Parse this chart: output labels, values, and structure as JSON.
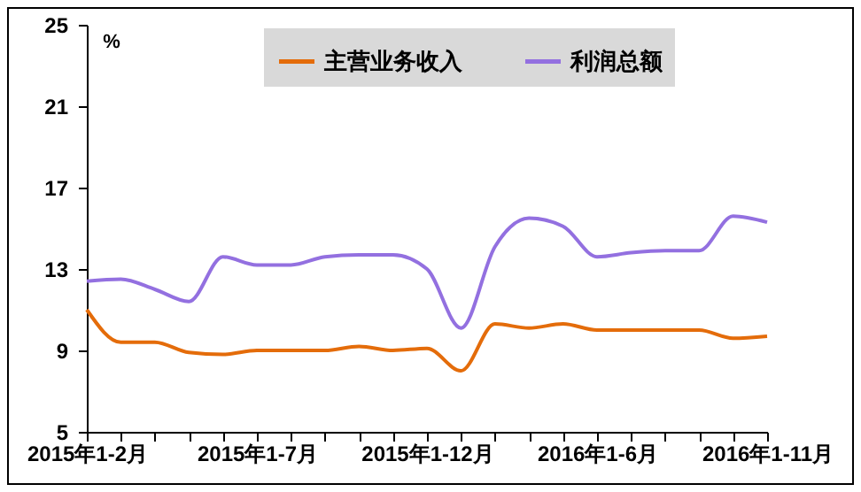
{
  "chart_data": {
    "type": "line",
    "categories": [
      "2015年1-2月",
      null,
      null,
      null,
      null,
      "2015年1-7月",
      null,
      null,
      null,
      null,
      "2015年1-12月",
      null,
      null,
      null,
      null,
      "2016年1-6月",
      null,
      null,
      null,
      null,
      "2016年1-11月"
    ],
    "series": [
      {
        "name": "主营业务收入",
        "color": "#e46c0a",
        "values": [
          11.0,
          9.4,
          9.4,
          8.9,
          8.8,
          9.0,
          9.0,
          9.0,
          9.2,
          9.0,
          9.1,
          8.0,
          10.3,
          10.1,
          10.3,
          10.0,
          10.0,
          10.0,
          10.0,
          9.6,
          9.7
        ]
      },
      {
        "name": "利润总额",
        "color": "#9370e0",
        "values": [
          12.4,
          12.5,
          12.0,
          11.4,
          13.6,
          13.2,
          13.2,
          13.6,
          13.7,
          13.7,
          13.0,
          10.1,
          14.1,
          15.5,
          15.1,
          13.6,
          13.8,
          13.9,
          13.9,
          15.6,
          15.3
        ]
      }
    ],
    "ylim": [
      5,
      25
    ],
    "yticks": [
      5,
      9,
      13,
      17,
      21,
      25
    ],
    "grid": false,
    "legend": "top",
    "annotations": [
      "%"
    ]
  }
}
